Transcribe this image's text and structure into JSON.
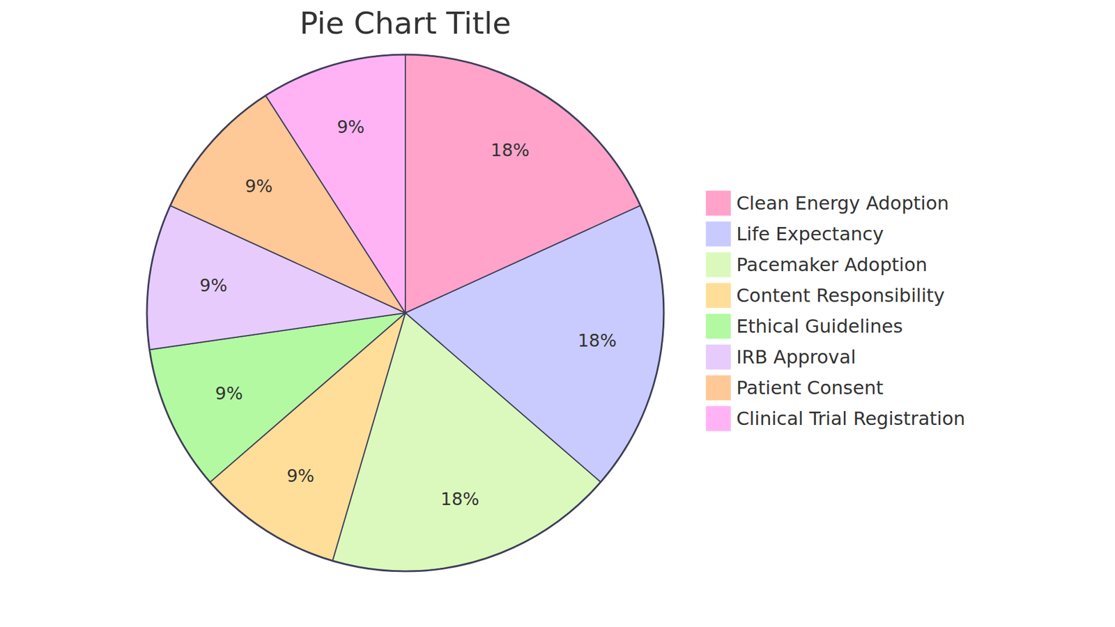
{
  "chart_data": {
    "type": "pie",
    "title": "Pie Chart Title",
    "categories": [
      "Clean Energy Adoption",
      "Life Expectancy",
      "Pacemaker Adoption",
      "Content Responsibility",
      "Ethical Guidelines",
      "IRB Approval",
      "Patient Consent",
      "Clinical Trial Registration"
    ],
    "values": [
      18,
      18,
      18,
      9,
      9,
      9,
      9,
      9
    ],
    "value_labels": [
      "18%",
      "18%",
      "18%",
      "9%",
      "9%",
      "9%",
      "9%",
      "9%"
    ],
    "colors": [
      "#ffa3ca",
      "#c9cbff",
      "#dbf9bc",
      "#fede98",
      "#b3f9a1",
      "#e7cbfc",
      "#ffc897",
      "#ffb3f5"
    ],
    "data_labels": true,
    "legend": "right"
  }
}
